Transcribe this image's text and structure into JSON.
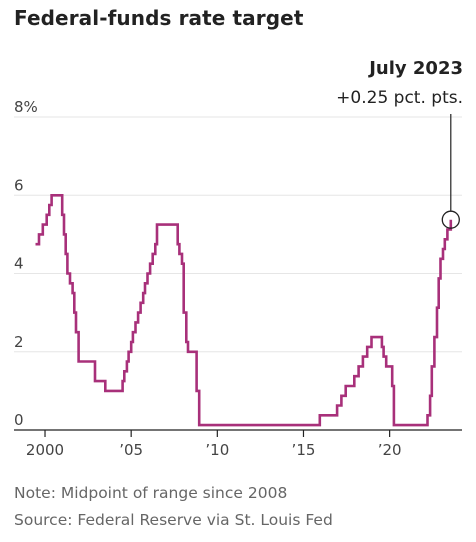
{
  "title": "Federal-funds rate target",
  "annotation": {
    "label": "July 2023",
    "sublabel": "+0.25 pct. pts."
  },
  "notes": [
    "Note: Midpoint of range since 2008",
    "Source: Federal Reserve via St. Louis Fed"
  ],
  "colors": {
    "line": "#a8307a",
    "grid": "#e6e6e6",
    "axis": "#222222",
    "text": "#444444"
  },
  "chart_data": {
    "type": "line",
    "title": "Federal-funds rate target",
    "xlabel": "",
    "ylabel": "",
    "xlim": [
      1998.2,
      2024.2
    ],
    "ylim": [
      0,
      8
    ],
    "y_ticks": [
      0,
      2,
      4,
      6,
      8
    ],
    "y_tick_labels": [
      "0",
      "2",
      "4",
      "6",
      "8%"
    ],
    "x_ticks": [
      2000,
      2005,
      2010,
      2015,
      2020
    ],
    "x_tick_labels": [
      "2000",
      "’05",
      "’10",
      "’15",
      "’20"
    ],
    "grid": true,
    "step": true,
    "x": [
      1999.45,
      1999.65,
      1999.87,
      2000.1,
      2000.25,
      2000.38,
      2001.0,
      2001.1,
      2001.2,
      2001.3,
      2001.45,
      2001.6,
      2001.7,
      2001.8,
      2001.95,
      2002.9,
      2003.5,
      2004.5,
      2004.6,
      2004.75,
      2004.85,
      2005.0,
      2005.1,
      2005.25,
      2005.4,
      2005.55,
      2005.7,
      2005.8,
      2005.95,
      2006.1,
      2006.25,
      2006.4,
      2006.5,
      2007.7,
      2007.8,
      2007.95,
      2008.05,
      2008.2,
      2008.3,
      2008.8,
      2008.95,
      2015.95,
      2016.95,
      2017.2,
      2017.45,
      2017.95,
      2018.2,
      2018.45,
      2018.7,
      2018.95,
      2019.55,
      2019.65,
      2019.8,
      2020.15,
      2020.25,
      2022.2,
      2022.35,
      2022.45,
      2022.6,
      2022.75,
      2022.85,
      2022.95,
      2023.1,
      2023.2,
      2023.35,
      2023.55
    ],
    "values": [
      4.75,
      5.0,
      5.25,
      5.5,
      5.75,
      6.0,
      5.5,
      5.0,
      4.5,
      4.0,
      3.75,
      3.5,
      3.0,
      2.5,
      1.75,
      1.25,
      1.0,
      1.25,
      1.5,
      1.75,
      2.0,
      2.25,
      2.5,
      2.75,
      3.0,
      3.25,
      3.5,
      3.75,
      4.0,
      4.25,
      4.5,
      4.75,
      5.25,
      4.75,
      4.5,
      4.25,
      3.0,
      2.25,
      2.0,
      1.0,
      0.125,
      0.375,
      0.625,
      0.875,
      1.125,
      1.375,
      1.625,
      1.875,
      2.125,
      2.375,
      2.125,
      1.875,
      1.625,
      1.125,
      0.125,
      0.375,
      0.875,
      1.625,
      2.375,
      3.125,
      3.875,
      4.375,
      4.625,
      4.875,
      5.125,
      5.375
    ],
    "highlight": {
      "x": 2023.55,
      "y": 5.375
    }
  }
}
